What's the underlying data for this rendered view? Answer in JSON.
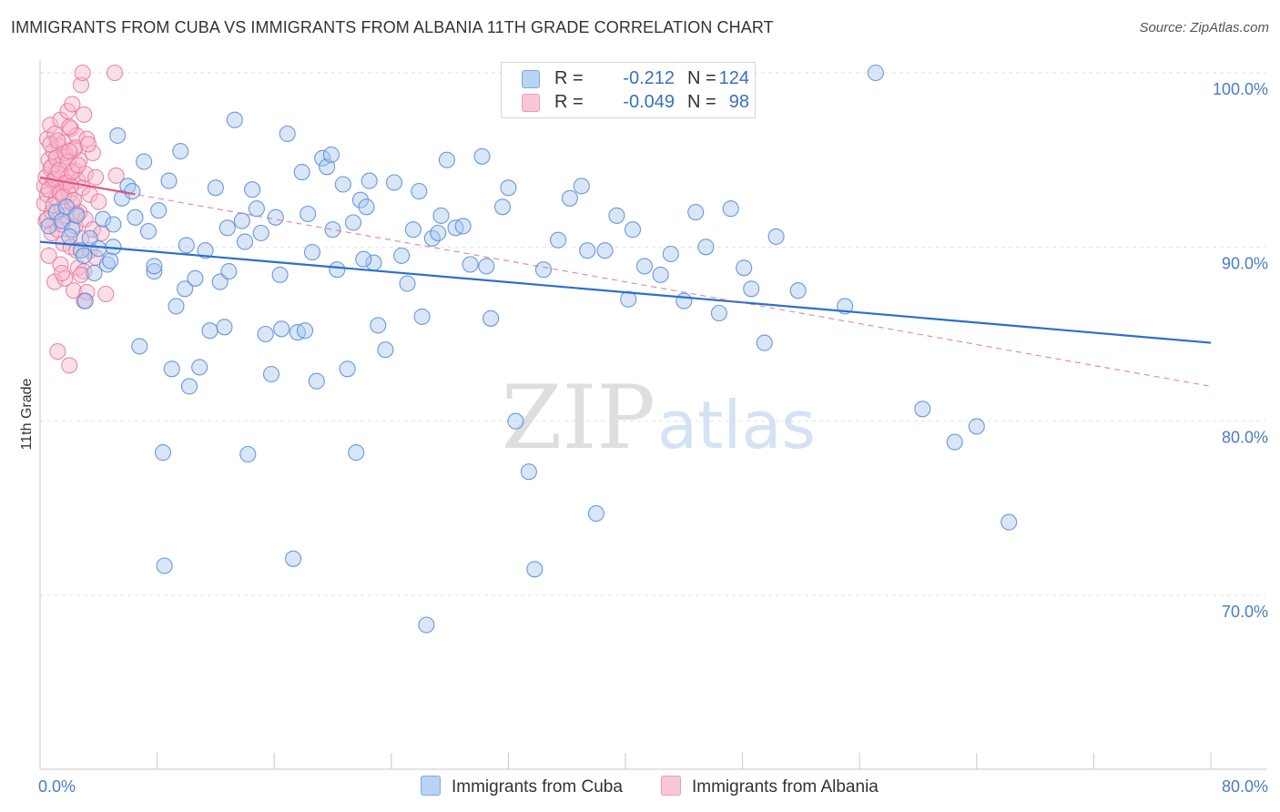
{
  "title": "IMMIGRANTS FROM CUBA VS IMMIGRANTS FROM ALBANIA 11TH GRADE CORRELATION CHART",
  "source": "Source: ZipAtlas.com",
  "watermark": {
    "zip": "ZIP",
    "atlas": "atlas"
  },
  "colors": {
    "cuba_fill": "#a9c8f0",
    "cuba_stroke": "#5b8fd8",
    "cuba_line": "#2b6fcf",
    "albania_fill": "#f7b8cc",
    "albania_stroke": "#e87ba0",
    "albania_line": "#e05580",
    "tick_label": "#4a7cc4",
    "grid": "#e2e2e2"
  },
  "legend": {
    "rows": [
      {
        "r_label": "R =",
        "r_value": "-0.212",
        "n_label": "N =",
        "n_value": "124"
      },
      {
        "r_label": "R =",
        "r_value": "-0.049",
        "n_label": "N =",
        "n_value": "98"
      }
    ]
  },
  "chart_data": {
    "type": "scatter",
    "title": "IMMIGRANTS FROM CUBA VS IMMIGRANTS FROM ALBANIA 11TH GRADE CORRELATION CHART",
    "xlabel": "",
    "ylabel": "11th Grade",
    "xlim": [
      0,
      80
    ],
    "ylim": [
      60,
      102
    ],
    "x_tick_labels": [
      "0.0%",
      "80.0%"
    ],
    "y_ticks": [
      70,
      80,
      90,
      100
    ],
    "y_tick_labels": [
      "70.0%",
      "80.0%",
      "90.0%",
      "100.0%"
    ],
    "grid": true,
    "legend_position": "top-center",
    "series": [
      {
        "name": "Immigrants from Cuba",
        "color": "#a9c8f0",
        "trend": {
          "x": [
            0,
            80
          ],
          "y": [
            90.3,
            84.5
          ],
          "style": "solid"
        },
        "points": [
          [
            0.6,
            91.2
          ],
          [
            1.1,
            92.0
          ],
          [
            1.5,
            91.5
          ],
          [
            1.8,
            92.3
          ],
          [
            2.2,
            91.0
          ],
          [
            2.5,
            91.8
          ],
          [
            2.8,
            89.8
          ],
          [
            3.1,
            86.9
          ],
          [
            3.4,
            90.5
          ],
          [
            3.7,
            88.5
          ],
          [
            4.0,
            89.9
          ],
          [
            4.3,
            91.6
          ],
          [
            4.6,
            89.0
          ],
          [
            5.0,
            91.3
          ],
          [
            5.3,
            96.4
          ],
          [
            5.6,
            92.8
          ],
          [
            6.0,
            93.5
          ],
          [
            6.3,
            93.2
          ],
          [
            6.8,
            84.3
          ],
          [
            7.1,
            94.9
          ],
          [
            7.4,
            90.9
          ],
          [
            7.8,
            88.6
          ],
          [
            8.1,
            92.1
          ],
          [
            8.4,
            78.2
          ],
          [
            8.8,
            93.8
          ],
          [
            9.0,
            83.0
          ],
          [
            9.3,
            86.6
          ],
          [
            9.6,
            95.5
          ],
          [
            9.9,
            87.6
          ],
          [
            10.2,
            82.0
          ],
          [
            10.6,
            88.2
          ],
          [
            10.9,
            83.1
          ],
          [
            11.3,
            89.8
          ],
          [
            11.6,
            85.2
          ],
          [
            12.0,
            93.4
          ],
          [
            12.3,
            88.0
          ],
          [
            12.6,
            85.4
          ],
          [
            12.9,
            88.6
          ],
          [
            13.3,
            97.3
          ],
          [
            13.8,
            91.5
          ],
          [
            14.2,
            78.1
          ],
          [
            14.5,
            93.3
          ],
          [
            14.8,
            92.2
          ],
          [
            15.1,
            90.8
          ],
          [
            15.4,
            85.0
          ],
          [
            15.8,
            82.7
          ],
          [
            16.1,
            91.7
          ],
          [
            16.5,
            85.3
          ],
          [
            16.9,
            96.5
          ],
          [
            17.3,
            72.1
          ],
          [
            17.6,
            85.1
          ],
          [
            17.9,
            94.3
          ],
          [
            18.3,
            91.9
          ],
          [
            18.6,
            89.7
          ],
          [
            18.9,
            82.3
          ],
          [
            19.3,
            95.1
          ],
          [
            19.6,
            94.6
          ],
          [
            19.9,
            95.3
          ],
          [
            20.3,
            88.7
          ],
          [
            20.7,
            93.6
          ],
          [
            21.0,
            83.0
          ],
          [
            21.4,
            91.4
          ],
          [
            21.6,
            78.2
          ],
          [
            21.9,
            92.7
          ],
          [
            22.3,
            92.3
          ],
          [
            22.5,
            93.8
          ],
          [
            22.8,
            89.1
          ],
          [
            23.1,
            85.5
          ],
          [
            23.6,
            84.1
          ],
          [
            24.2,
            93.7
          ],
          [
            25.1,
            87.9
          ],
          [
            25.5,
            91.0
          ],
          [
            25.9,
            93.2
          ],
          [
            26.1,
            86.0
          ],
          [
            26.8,
            90.5
          ],
          [
            27.4,
            91.8
          ],
          [
            27.8,
            95.0
          ],
          [
            28.4,
            91.1
          ],
          [
            28.9,
            91.2
          ],
          [
            29.4,
            89.0
          ],
          [
            30.2,
            95.2
          ],
          [
            30.8,
            85.9
          ],
          [
            31.6,
            92.3
          ],
          [
            32.0,
            93.4
          ],
          [
            32.5,
            80.0
          ],
          [
            33.4,
            77.1
          ],
          [
            33.8,
            71.5
          ],
          [
            34.4,
            88.7
          ],
          [
            35.4,
            90.4
          ],
          [
            36.2,
            92.8
          ],
          [
            37.0,
            93.5
          ],
          [
            37.4,
            89.8
          ],
          [
            38.0,
            74.7
          ],
          [
            38.6,
            89.8
          ],
          [
            39.4,
            91.8
          ],
          [
            40.2,
            87.0
          ],
          [
            41.3,
            88.9
          ],
          [
            42.4,
            88.4
          ],
          [
            43.1,
            89.6
          ],
          [
            44.0,
            86.9
          ],
          [
            44.8,
            92.0
          ],
          [
            45.5,
            90.0
          ],
          [
            46.4,
            86.2
          ],
          [
            47.2,
            92.2
          ],
          [
            48.1,
            88.8
          ],
          [
            48.6,
            87.6
          ],
          [
            49.5,
            84.5
          ],
          [
            50.3,
            90.6
          ],
          [
            51.8,
            87.5
          ],
          [
            57.1,
            100.0
          ],
          [
            60.3,
            80.7
          ],
          [
            62.5,
            78.8
          ],
          [
            64.0,
            79.7
          ],
          [
            66.2,
            74.2
          ],
          [
            5.0,
            90.0
          ],
          [
            7.8,
            88.9
          ],
          [
            12.8,
            91.1
          ],
          [
            14.0,
            90.3
          ],
          [
            18.1,
            85.2
          ],
          [
            22.1,
            89.3
          ],
          [
            24.7,
            89.5
          ],
          [
            27.2,
            90.8
          ],
          [
            30.5,
            88.9
          ],
          [
            2.0,
            90.6
          ],
          [
            3.0,
            89.5
          ],
          [
            4.8,
            89.2
          ],
          [
            6.5,
            91.7
          ],
          [
            10.0,
            90.1
          ],
          [
            16.4,
            88.4
          ],
          [
            20.0,
            91.0
          ],
          [
            26.4,
            68.3
          ],
          [
            8.5,
            71.7
          ],
          [
            40.5,
            91.0
          ],
          [
            55.0,
            86.6
          ]
        ]
      },
      {
        "name": "Immigrants from Albania",
        "color": "#f7b8cc",
        "trend": {
          "x": [
            0,
            80
          ],
          "y": [
            94.0,
            82.0
          ],
          "style": "dashed",
          "solid_x_end": 6.5
        },
        "points": [
          [
            0.3,
            93.5
          ],
          [
            0.3,
            92.5
          ],
          [
            0.4,
            94.0
          ],
          [
            0.4,
            91.5
          ],
          [
            0.5,
            96.2
          ],
          [
            0.5,
            93.0
          ],
          [
            0.6,
            95.0
          ],
          [
            0.6,
            89.5
          ],
          [
            0.7,
            97.0
          ],
          [
            0.7,
            94.5
          ],
          [
            0.8,
            92.0
          ],
          [
            0.8,
            90.8
          ],
          [
            0.9,
            95.5
          ],
          [
            0.9,
            93.8
          ],
          [
            1.0,
            88.0
          ],
          [
            1.0,
            96.5
          ],
          [
            1.1,
            94.2
          ],
          [
            1.1,
            92.8
          ],
          [
            1.2,
            91.0
          ],
          [
            1.2,
            84.0
          ],
          [
            1.3,
            95.8
          ],
          [
            1.3,
            93.2
          ],
          [
            1.4,
            97.3
          ],
          [
            1.4,
            89.0
          ],
          [
            1.5,
            94.8
          ],
          [
            1.5,
            92.2
          ],
          [
            1.6,
            96.0
          ],
          [
            1.6,
            90.2
          ],
          [
            1.7,
            93.6
          ],
          [
            1.7,
            88.2
          ],
          [
            1.8,
            95.2
          ],
          [
            1.8,
            91.8
          ],
          [
            1.9,
            97.8
          ],
          [
            1.9,
            94.0
          ],
          [
            2.0,
            93.0
          ],
          [
            2.0,
            83.2
          ],
          [
            2.1,
            96.8
          ],
          [
            2.1,
            90.0
          ],
          [
            2.2,
            98.2
          ],
          [
            2.2,
            92.5
          ],
          [
            2.3,
            95.6
          ],
          [
            2.3,
            87.5
          ],
          [
            2.4,
            94.4
          ],
          [
            2.4,
            91.2
          ],
          [
            2.5,
            96.4
          ],
          [
            2.5,
            89.8
          ],
          [
            2.6,
            93.8
          ],
          [
            2.6,
            88.8
          ],
          [
            2.7,
            95.0
          ],
          [
            2.7,
            92.0
          ],
          [
            2.8,
            99.3
          ],
          [
            2.8,
            90.5
          ],
          [
            2.9,
            100.0
          ],
          [
            2.9,
            93.4
          ],
          [
            3.0,
            97.6
          ],
          [
            3.0,
            88.6
          ],
          [
            3.1,
            94.2
          ],
          [
            3.1,
            91.6
          ],
          [
            3.2,
            96.2
          ],
          [
            3.2,
            87.4
          ],
          [
            3.4,
            93.0
          ],
          [
            3.4,
            89.8
          ],
          [
            3.6,
            95.4
          ],
          [
            3.6,
            91.0
          ],
          [
            3.8,
            94.0
          ],
          [
            3.8,
            89.4
          ],
          [
            4.0,
            92.6
          ],
          [
            4.2,
            90.8
          ],
          [
            4.5,
            87.3
          ],
          [
            5.2,
            94.1
          ],
          [
            0.5,
            91.6
          ],
          [
            0.6,
            93.3
          ],
          [
            0.7,
            95.9
          ],
          [
            0.8,
            94.6
          ],
          [
            0.9,
            92.4
          ],
          [
            1.0,
            93.9
          ],
          [
            1.1,
            95.1
          ],
          [
            1.2,
            96.1
          ],
          [
            1.3,
            94.4
          ],
          [
            1.4,
            93.1
          ],
          [
            1.5,
            91.3
          ],
          [
            1.6,
            92.9
          ],
          [
            1.7,
            95.4
          ],
          [
            1.8,
            93.7
          ],
          [
            1.9,
            94.9
          ],
          [
            2.0,
            96.9
          ],
          [
            2.1,
            93.5
          ],
          [
            2.2,
            94.3
          ],
          [
            2.3,
            92.7
          ],
          [
            2.4,
            95.7
          ],
          [
            2.5,
            91.9
          ],
          [
            2.6,
            94.7
          ],
          [
            5.1,
            100.0
          ],
          [
            3.0,
            86.9
          ],
          [
            1.5,
            88.5
          ],
          [
            2.8,
            88.4
          ],
          [
            3.3,
            95.9
          ],
          [
            2.0,
            95.5
          ]
        ]
      }
    ]
  },
  "bottom_legend": {
    "items": [
      "Immigrants from Cuba",
      "Immigrants from Albania"
    ]
  }
}
